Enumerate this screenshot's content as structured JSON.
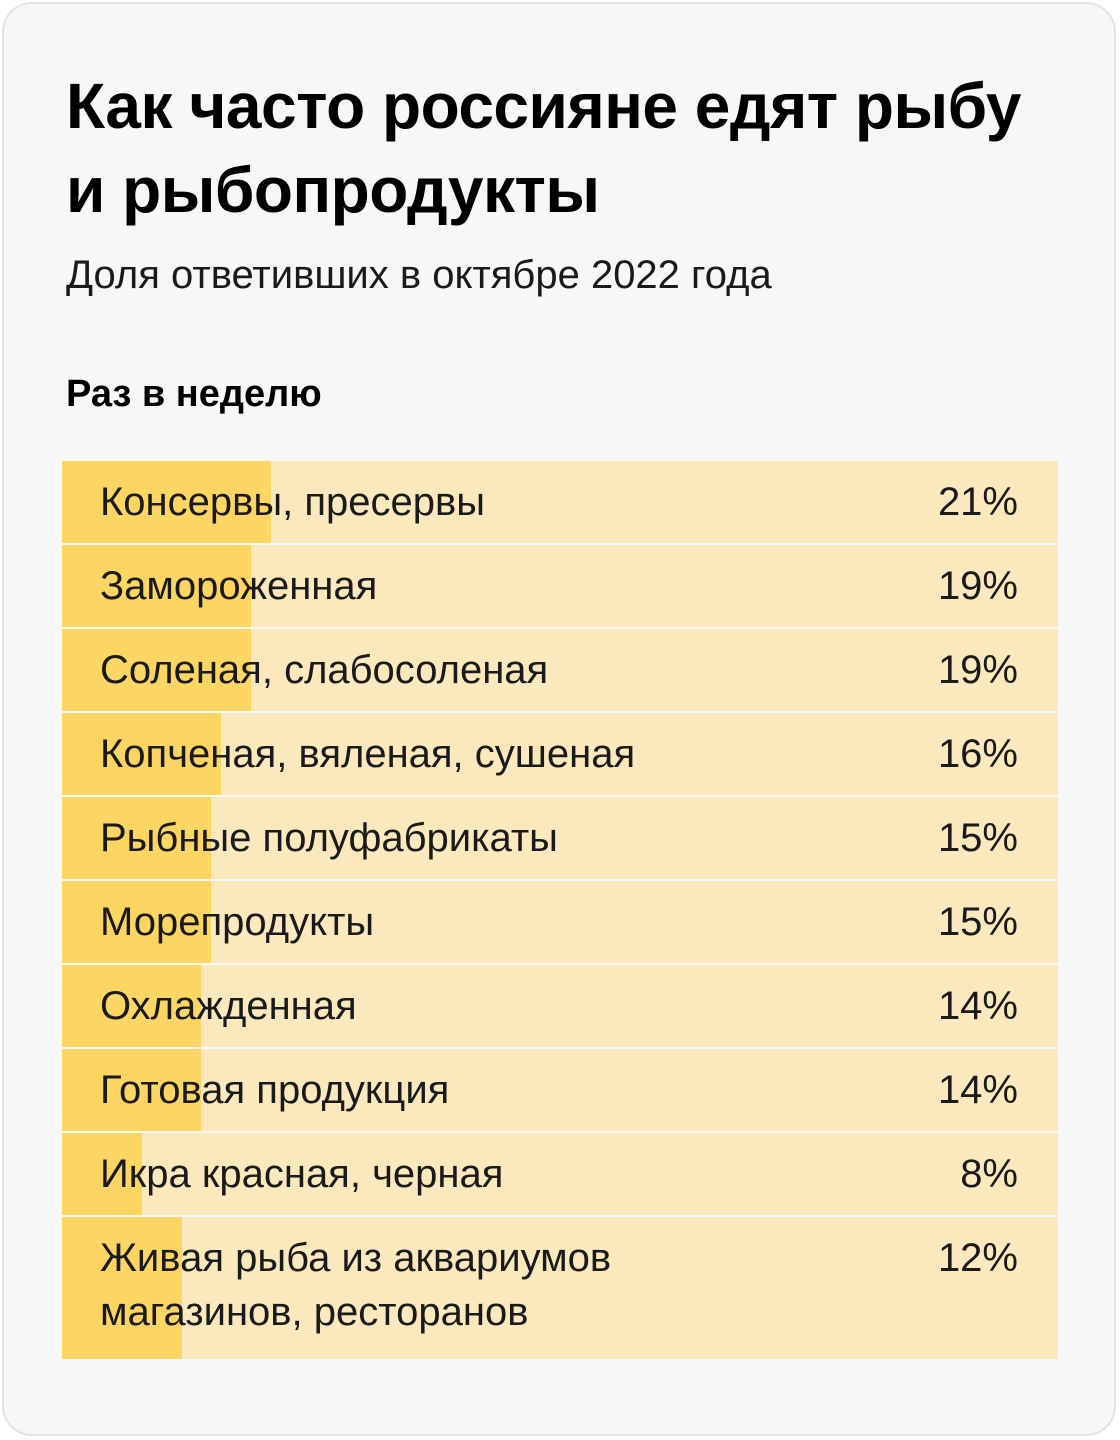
{
  "title": "Как часто россияне едят рыбу и рыбопродукты",
  "subtitle": "Доля ответивших в октябре 2022 года",
  "section_label": "Раз в неделю",
  "colors": {
    "bar_fill": "#fdd563",
    "bar_track": "#fbe9bd",
    "card_background": "#f7f7f7"
  },
  "chart_data": {
    "type": "bar",
    "orientation": "horizontal",
    "title": "Как часто россияне едят рыбу и рыбопродукты",
    "subtitle": "Доля ответивших в октябре 2022 года",
    "group": "Раз в неделю",
    "unit": "%",
    "xlim": [
      0,
      100
    ],
    "categories": [
      "Консервы, пресервы",
      "Замороженная",
      "Соленая, слабосоленая",
      "Копченая, вяленая, сушеная",
      "Рыбные полуфабрикаты",
      "Морепродукты",
      "Охлажденная",
      "Готовая продукция",
      "Икра красная, черная",
      "Живая рыба из аквариумов магазинов, ресторанов"
    ],
    "values": [
      21,
      19,
      19,
      16,
      15,
      15,
      14,
      14,
      8,
      12
    ],
    "value_labels": [
      "21%",
      "19%",
      "19%",
      "16%",
      "15%",
      "15%",
      "14%",
      "14%",
      "8%",
      "12%"
    ],
    "grid": false,
    "legend": "none"
  }
}
